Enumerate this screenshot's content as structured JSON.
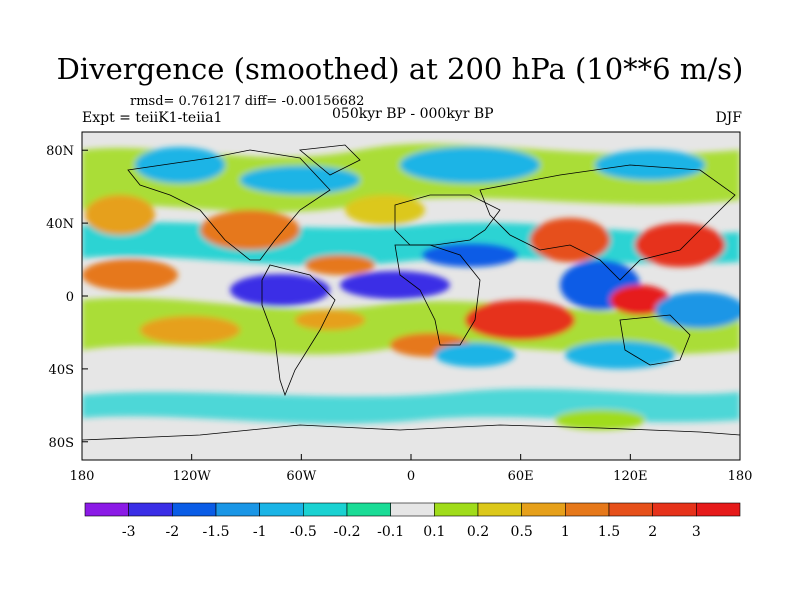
{
  "title": "Divergence (smoothed) at 200 hPa (10**6 m/s)",
  "stats": "rmsd= 0.761217 diff= -0.00156682",
  "experiment": "Expt = teiiK1-teiia1",
  "period": "050kyr BP - 000kyr BP",
  "season": "DJF",
  "map": {
    "projection": "cylindrical equidistant",
    "lon_range": [
      -180,
      180
    ],
    "lat_range": [
      -90,
      90
    ],
    "x_ticks": [
      "180",
      "120W",
      "60W",
      "0",
      "60E",
      "120E",
      "180"
    ],
    "y_ticks": [
      "80N",
      "40N",
      "0",
      "40S",
      "80S"
    ]
  },
  "colorbar": {
    "labels": [
      "-3",
      "-2",
      "-1.5",
      "-1",
      "-0.5",
      "-0.2",
      "-0.1",
      "0.1",
      "0.2",
      "0.5",
      "1",
      "1.5",
      "2",
      "3"
    ],
    "colors": [
      "#8b1ae6",
      "#3a2ee6",
      "#0a5ce6",
      "#1a96e6",
      "#1ab4e6",
      "#1ad2d2",
      "#1adc96",
      "#e6e6e6",
      "#a0dc1a",
      "#dcc81a",
      "#e6a01a",
      "#e6781a",
      "#e6501a",
      "#e6321a",
      "#e61a1a"
    ]
  },
  "colors": {
    "land_outline": "#000000",
    "missing_background": "#e6e6e6"
  }
}
